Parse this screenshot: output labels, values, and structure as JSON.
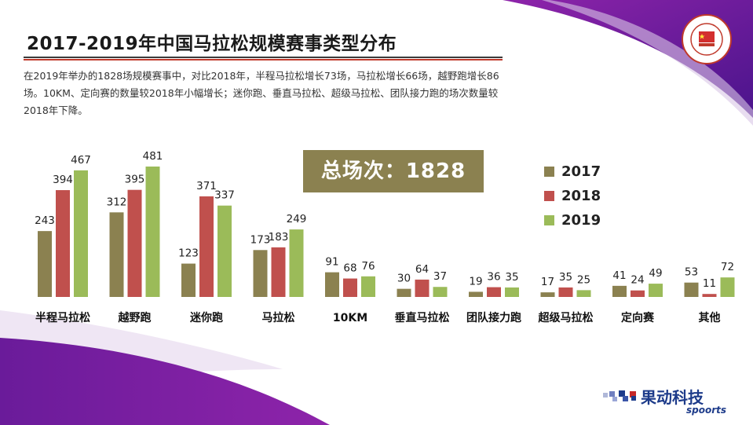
{
  "title": "2017-2019年中国马拉松规模赛事类型分布",
  "description": "在2019年举办的1828场规模赛事中，对比2018年，半程马拉松增长73场，马拉松增长66场，越野跑增长86场。10KM、定向赛的数量较2018年小幅增长；迷你跑、垂直马拉松、超级马拉松、团队接力跑的场次数量较2018年下降。",
  "total_label": "总场次：1828",
  "logo": {
    "icon": "chinese-athletics-association-logo",
    "text": "CHINESE ATHLETICS ASSOCIATION"
  },
  "brand": {
    "name_cn": "果动科技",
    "name_en": "spoorts",
    "icon": "checker-flag-icon"
  },
  "colors": {
    "2017": "#8b8150",
    "2018": "#c0504d",
    "2019": "#9bbb59",
    "accent": "#6a1b9a"
  },
  "chart_data": {
    "type": "bar",
    "categories": [
      "半程马拉松",
      "越野跑",
      "迷你跑",
      "马拉松",
      "10KM",
      "垂直马拉松",
      "团队接力跑",
      "超级马拉松",
      "定向赛",
      "其他"
    ],
    "series": [
      {
        "name": "2017",
        "values": [
          243,
          312,
          123,
          173,
          91,
          30,
          19,
          17,
          41,
          53
        ]
      },
      {
        "name": "2018",
        "values": [
          394,
          395,
          371,
          183,
          68,
          64,
          36,
          35,
          24,
          11
        ]
      },
      {
        "name": "2019",
        "values": [
          467,
          481,
          337,
          249,
          76,
          37,
          35,
          25,
          49,
          72
        ]
      }
    ],
    "xlabel": "",
    "ylabel": "",
    "ylim": [
      0,
      481
    ],
    "grid": false,
    "legend": "right"
  }
}
